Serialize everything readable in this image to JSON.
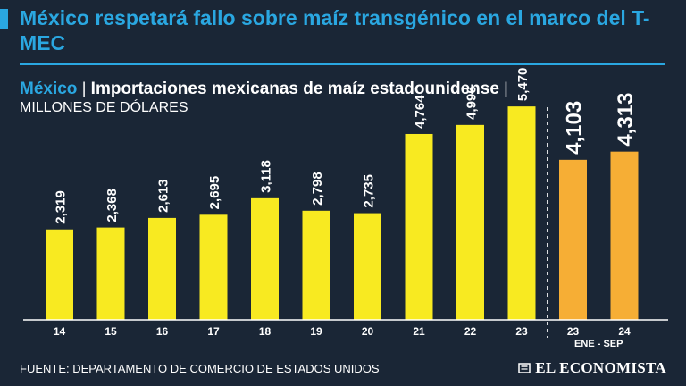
{
  "headline": "México respetará fallo sobre maíz transgénico en el marco del T-MEC",
  "subtitle": {
    "country": "México",
    "separator": "|",
    "title": "Importaciones mexicanas de maíz estadounidense",
    "separator2": "|",
    "unit": "MILLONES DE DÓLARES"
  },
  "chart_data": {
    "type": "bar",
    "categories": [
      "14",
      "15",
      "16",
      "17",
      "18",
      "19",
      "20",
      "21",
      "22",
      "23",
      "23",
      "24"
    ],
    "values": [
      2319,
      2368,
      2613,
      2695,
      3118,
      2798,
      2735,
      4764,
      4996,
      5470,
      4103,
      4313
    ],
    "value_labels": [
      "2,319",
      "2,368",
      "2,613",
      "2,695",
      "3,118",
      "2,798",
      "2,735",
      "4,764",
      "4,996",
      "5,470",
      "4,103",
      "4,313"
    ],
    "highlight_from_index": 10,
    "group_label": "ENE - SEP",
    "colors": {
      "regular": "#f8ea21",
      "highlight": "#f6ae35",
      "axis": "#ffffff"
    },
    "ylim": [
      0,
      6000
    ],
    "xlabel": "",
    "ylabel": ""
  },
  "footer": {
    "source": "FUENTE: DEPARTAMENTO DE COMERCIO DE ESTADOS UNIDOS",
    "brand": "EL ECONOMISTA",
    "brand_icon": "newspaper-icon"
  },
  "colors": {
    "background": "#1a2636",
    "accent": "#2aa7e1",
    "text": "#ffffff"
  }
}
